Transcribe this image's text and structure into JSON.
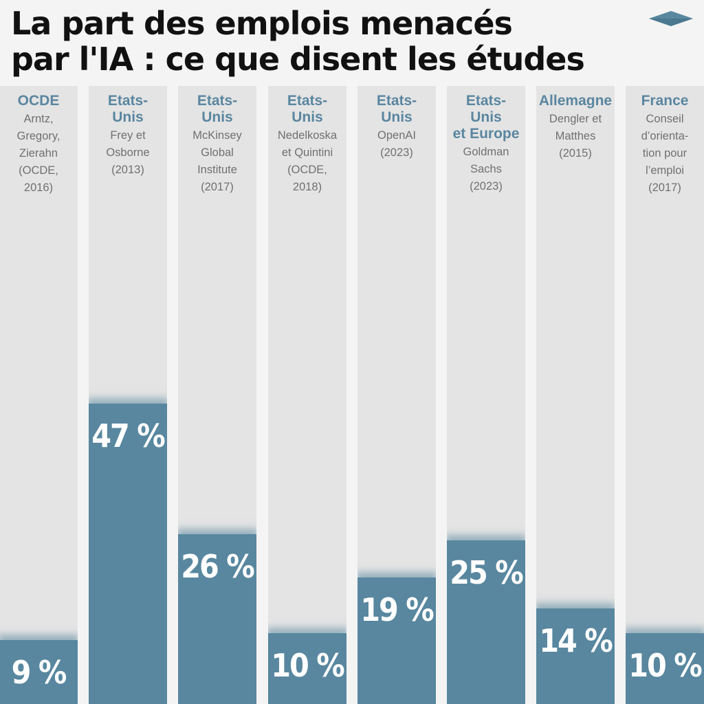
{
  "title": {
    "line1": "La part des emplois menacés",
    "line2": "par l'IA : ce que disent les études"
  },
  "logo_icon": "diamond-logo-icon",
  "colors": {
    "accent": "#58879f",
    "label": "#5a86a0",
    "column_bg": "#e4e4e4",
    "page_bg": "#f4f4f4",
    "source_text": "#707070"
  },
  "chart_data": {
    "type": "bar",
    "title": "La part des emplois menacés par l'IA : ce que disent les études",
    "categories": [
      "OCDE",
      "Etats-Unis",
      "Etats-Unis",
      "Etats-Unis",
      "Etats-Unis",
      "Etats-Unis et Europe",
      "Allemagne",
      "France"
    ],
    "values": [
      9,
      47,
      26,
      10,
      19,
      25,
      14,
      10
    ],
    "value_labels": [
      "9 %",
      "47 %",
      "26 %",
      "10 %",
      "19 %",
      "25 %",
      "14 %",
      "10 %"
    ],
    "columns": [
      {
        "country": "OCDE",
        "source": "Arntz,\nGregory,\nZierahn\n(OCDE,\n2016)"
      },
      {
        "country": "Etats-\nUnis",
        "source": "Frey et\nOsborne\n(2013)"
      },
      {
        "country": "Etats-\nUnis",
        "source": "McKinsey\nGlobal\nInstitute\n(2017)"
      },
      {
        "country": "Etats-\nUnis",
        "source": "Nedelkoska\net Quintini\n(OCDE,\n2018)"
      },
      {
        "country": "Etats-\nUnis",
        "source": "OpenAI\n(2023)"
      },
      {
        "country": "Etats-\nUnis\net Europe",
        "source": "Goldman\nSachs\n(2023)"
      },
      {
        "country": "Allemagne",
        "source": "Dengler et\nMatthes\n(2015)"
      },
      {
        "country": "France",
        "source": "Conseil\nd’orienta-\ntion pour\nl’emploi\n(2017)"
      }
    ],
    "xlabel": "",
    "ylabel": "",
    "ylim": [
      0,
      100
    ],
    "grid": false,
    "legend": "none"
  }
}
